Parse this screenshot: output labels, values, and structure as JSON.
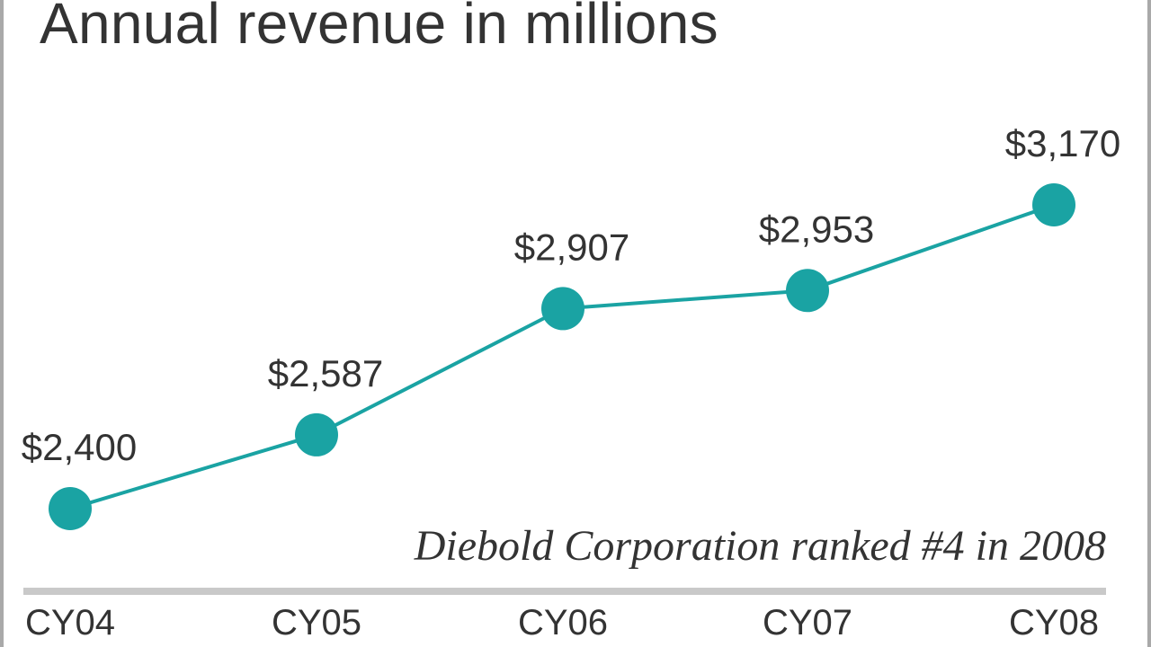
{
  "chart_data": {
    "type": "line",
    "title": "Annual revenue in millions",
    "categories": [
      "CY04",
      "CY05",
      "CY06",
      "CY07",
      "CY08"
    ],
    "values": [
      2400,
      2587,
      2907,
      2953,
      3170
    ],
    "value_labels": [
      "$2,400",
      "$2,587",
      "$2,907",
      "$2,953",
      "$3,170"
    ],
    "annotation": "Diebold Corporation ranked #4 in 2008",
    "xlabel": "",
    "ylabel": "",
    "ylim": [
      2400,
      3170
    ],
    "grid": false,
    "legend": "none",
    "colors": {
      "line": "#1aa3a3",
      "marker": "#1aa3a3",
      "text": "#333333",
      "axis": "#c9c9c9",
      "frame": "#a9a9a9"
    }
  }
}
